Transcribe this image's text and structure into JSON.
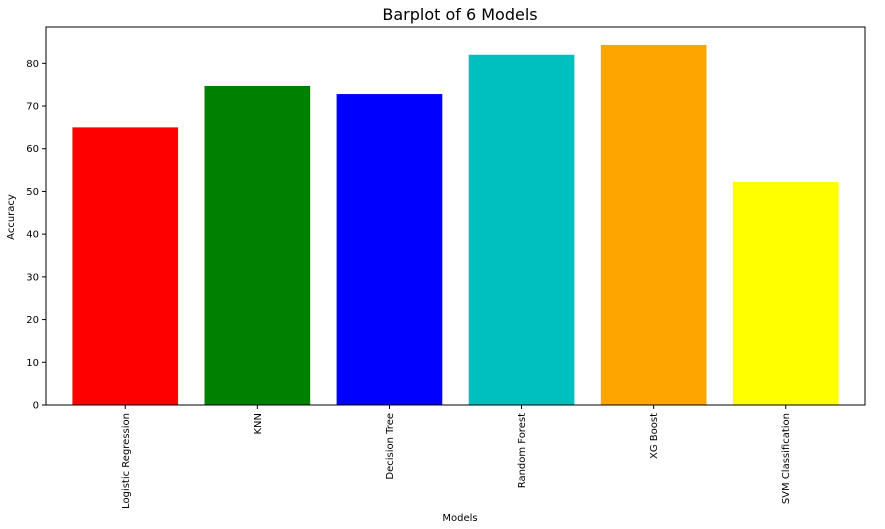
{
  "chart_data": {
    "type": "bar",
    "title": "Barplot of 6 Models",
    "xlabel": "Models",
    "ylabel": "Accuracy",
    "categories": [
      "Logistic Regression",
      "KNN",
      "Decision Tree",
      "Random Forest",
      "XG Boost",
      "SVM Classification"
    ],
    "values": [
      65,
      74.7,
      72.8,
      82,
      84.3,
      52.2
    ],
    "colors": [
      "#ff0000",
      "#008000",
      "#0000ff",
      "#00bfbf",
      "#ffa500",
      "#ffff00"
    ],
    "ylim": [
      0,
      88.5
    ],
    "yticks": [
      0,
      10,
      20,
      30,
      40,
      50,
      60,
      70,
      80
    ],
    "grid": false,
    "legend": "none"
  }
}
